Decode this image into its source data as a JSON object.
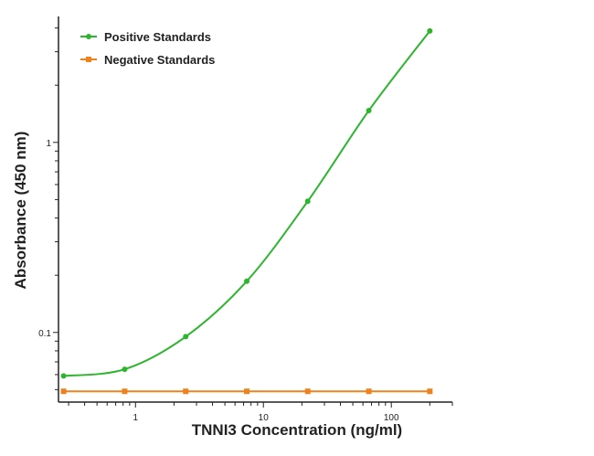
{
  "chart_data": {
    "type": "line",
    "title": "",
    "xlabel": "TNNI3 Concentration (ng/ml)",
    "ylabel": "Absorbance (450 nm)",
    "xscale": "log",
    "yscale": "log",
    "xlim": [
      0.25,
      300
    ],
    "ylim": [
      0.043,
      4.6
    ],
    "xticks": [
      {
        "value": 1,
        "label": "1"
      },
      {
        "value": 10,
        "label": "10"
      },
      {
        "value": 100,
        "label": "100"
      }
    ],
    "yticks": [
      {
        "value": 0.1,
        "label": "0.1"
      },
      {
        "value": 1,
        "label": "1"
      }
    ],
    "grid": false,
    "legend_position": "top-left",
    "x": [
      0.274,
      0.823,
      2.47,
      7.41,
      22.2,
      66.7,
      200
    ],
    "series": [
      {
        "name": "Positive Standards",
        "color": "#2db52d",
        "marker": "circle",
        "values": [
          0.059,
          0.064,
          0.095,
          0.186,
          0.49,
          1.47,
          3.86
        ]
      },
      {
        "name": "Negative Standards",
        "color": "#f0821e",
        "marker": "square",
        "values": [
          0.049,
          0.049,
          0.049,
          0.049,
          0.049,
          0.049,
          0.049
        ]
      }
    ]
  }
}
